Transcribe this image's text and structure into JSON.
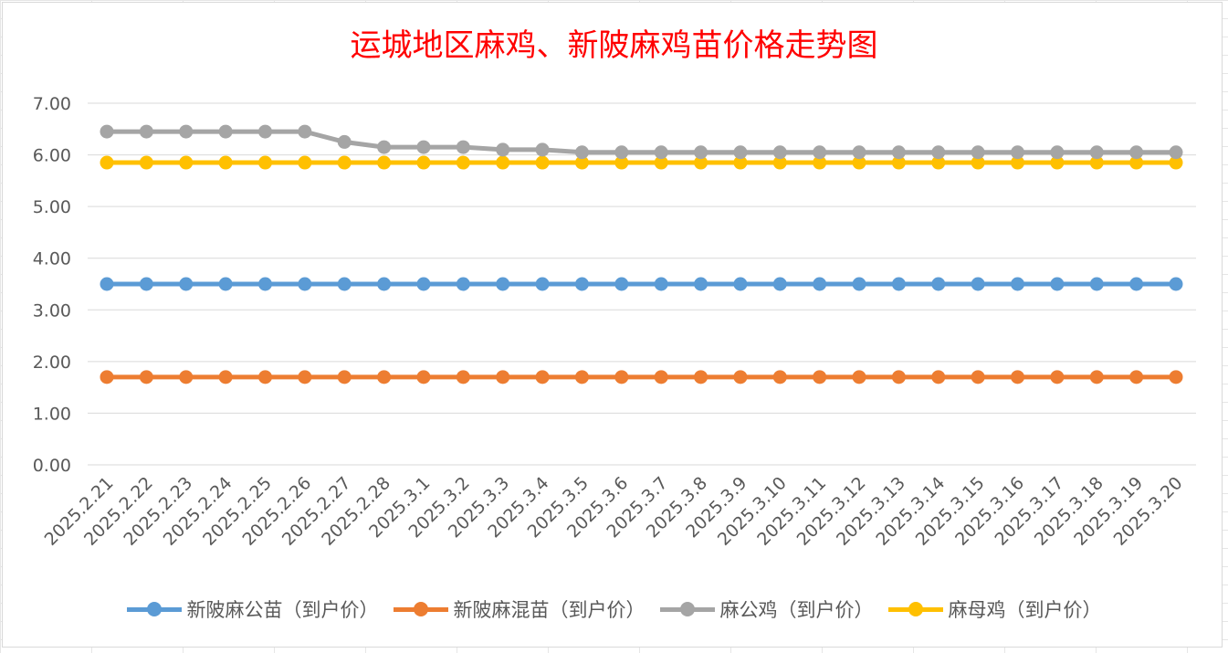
{
  "chart_data": {
    "type": "line",
    "title": "运城地区麻鸡、新陂麻鸡苗价格走势图",
    "xlabel": "",
    "ylabel": "",
    "ylim": [
      0,
      7
    ],
    "y_tick_labels": [
      "0.00",
      "1.00",
      "2.00",
      "3.00",
      "4.00",
      "5.00",
      "6.00",
      "7.00"
    ],
    "grid": "horizontal",
    "legend_position": "bottom",
    "categories": [
      "2025.2.21",
      "2025.2.22",
      "2025.2.23",
      "2025.2.24",
      "2025.2.25",
      "2025.2.26",
      "2025.2.27",
      "2025.2.28",
      "2025.3.1",
      "2025.3.2",
      "2025.3.3",
      "2025.3.4",
      "2025.3.5",
      "2025.3.6",
      "2025.3.7",
      "2025.3.8",
      "2025.3.9",
      "2025.3.10",
      "2025.3.11",
      "2025.3.12",
      "2025.3.13",
      "2025.3.14",
      "2025.3.15",
      "2025.3.16",
      "2025.3.17",
      "2025.3.18",
      "2025.3.19",
      "2025.3.20"
    ],
    "series": [
      {
        "name": "新陂麻公苗（到户价）",
        "color": "#5b9bd5",
        "values": [
          3.5,
          3.5,
          3.5,
          3.5,
          3.5,
          3.5,
          3.5,
          3.5,
          3.5,
          3.5,
          3.5,
          3.5,
          3.5,
          3.5,
          3.5,
          3.5,
          3.5,
          3.5,
          3.5,
          3.5,
          3.5,
          3.5,
          3.5,
          3.5,
          3.5,
          3.5,
          3.5,
          3.5
        ]
      },
      {
        "name": "新陂麻混苗（到户价）",
        "color": "#ed7d31",
        "values": [
          1.7,
          1.7,
          1.7,
          1.7,
          1.7,
          1.7,
          1.7,
          1.7,
          1.7,
          1.7,
          1.7,
          1.7,
          1.7,
          1.7,
          1.7,
          1.7,
          1.7,
          1.7,
          1.7,
          1.7,
          1.7,
          1.7,
          1.7,
          1.7,
          1.7,
          1.7,
          1.7,
          1.7
        ]
      },
      {
        "name": "麻公鸡（到户价）",
        "color": "#a5a5a5",
        "values": [
          6.45,
          6.45,
          6.45,
          6.45,
          6.45,
          6.45,
          6.25,
          6.15,
          6.15,
          6.15,
          6.1,
          6.1,
          6.05,
          6.05,
          6.05,
          6.05,
          6.05,
          6.05,
          6.05,
          6.05,
          6.05,
          6.05,
          6.05,
          6.05,
          6.05,
          6.05,
          6.05,
          6.05
        ]
      },
      {
        "name": "麻母鸡（到户价）",
        "color": "#ffc000",
        "values": [
          5.85,
          5.85,
          5.85,
          5.85,
          5.85,
          5.85,
          5.85,
          5.85,
          5.85,
          5.85,
          5.85,
          5.85,
          5.85,
          5.85,
          5.85,
          5.85,
          5.85,
          5.85,
          5.85,
          5.85,
          5.85,
          5.85,
          5.85,
          5.85,
          5.85,
          5.85,
          5.85,
          5.85
        ]
      }
    ]
  }
}
